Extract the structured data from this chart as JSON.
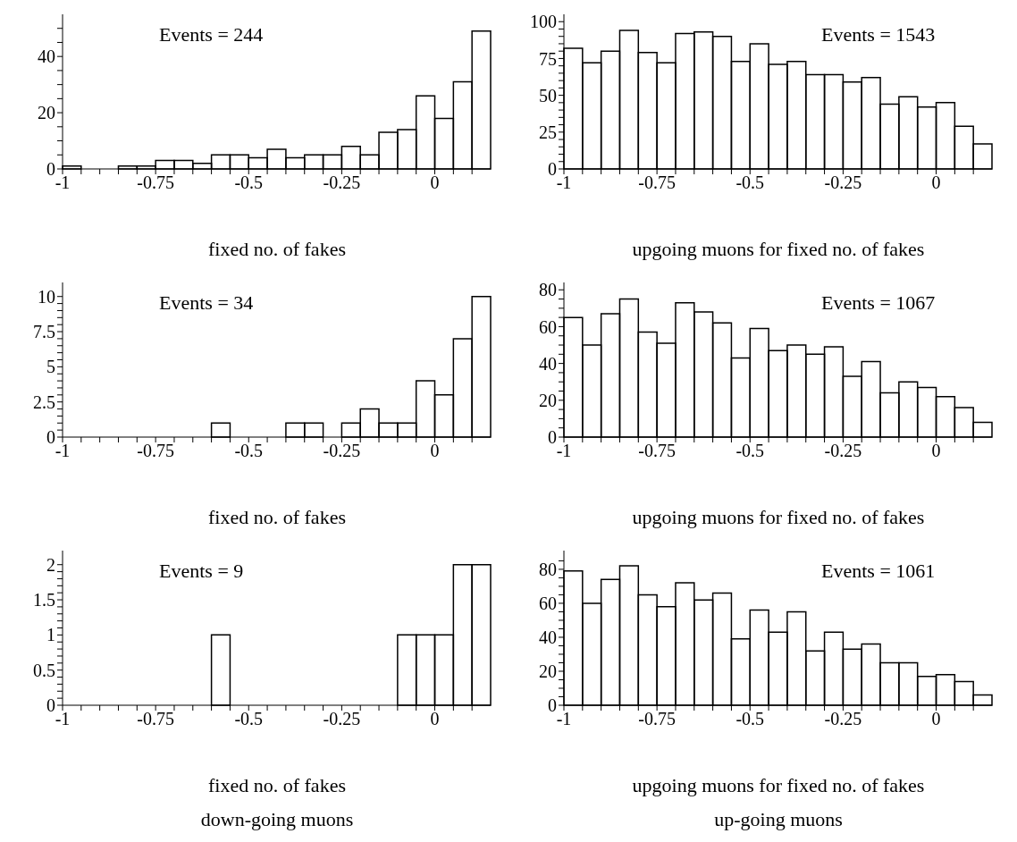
{
  "chart_data": [
    {
      "type": "histogram",
      "annotations": [
        "Events = 244"
      ],
      "xlabel": "fixed no. of fakes",
      "color": "#000000",
      "bins": [
        -1,
        -0.95,
        -0.9,
        -0.85,
        -0.8,
        -0.75,
        -0.7,
        -0.65,
        -0.6,
        -0.55,
        -0.5,
        -0.45,
        -0.4,
        -0.35,
        -0.3,
        -0.25,
        -0.2,
        -0.15,
        -0.1,
        -0.05,
        0,
        0.05,
        0.1,
        0.15
      ],
      "values": [
        1,
        0,
        0,
        1,
        1,
        3,
        3,
        2,
        5,
        5,
        4,
        7,
        4,
        5,
        5,
        8,
        5,
        13,
        14,
        26,
        18,
        31,
        49
      ],
      "xlim": [
        -1,
        0.15
      ],
      "xticks": [
        -1,
        {
          "value": -0.95,
          "label": null
        },
        {
          "value": -0.9,
          "label": null
        },
        {
          "value": -0.85,
          "label": null
        },
        {
          "value": -0.8,
          "label": null
        },
        -0.75,
        {
          "value": -0.7,
          "label": null
        },
        {
          "value": -0.65,
          "label": null
        },
        {
          "value": -0.6,
          "label": null
        },
        {
          "value": -0.55,
          "label": null
        },
        -0.5,
        {
          "value": -0.45,
          "label": null
        },
        {
          "value": -0.4,
          "label": null
        },
        {
          "value": -0.35,
          "label": null
        },
        {
          "value": -0.3,
          "label": null
        },
        -0.25,
        {
          "value": -0.2,
          "label": null
        },
        {
          "value": -0.15,
          "label": null
        },
        {
          "value": -0.1,
          "label": null
        },
        {
          "value": -0.05,
          "label": null
        },
        0,
        {
          "value": 0.05,
          "label": null
        },
        {
          "value": 0.1,
          "label": null
        }
      ],
      "ylim": [
        0,
        55
      ],
      "yticks": [
        0,
        {
          "value": 5,
          "label": null
        },
        {
          "value": 10,
          "label": null
        },
        {
          "value": 15,
          "label": null
        },
        20,
        {
          "value": 25,
          "label": null
        },
        {
          "value": 30,
          "label": null
        },
        {
          "value": 35,
          "label": null
        },
        40,
        {
          "value": 45,
          "label": null
        },
        {
          "value": 50,
          "label": null
        }
      ]
    },
    {
      "type": "histogram",
      "annotations": [
        "Events = 1543"
      ],
      "xlabel": "upgoing muons for fixed no. of fakes",
      "color": "#000000",
      "bins": [
        -1,
        -0.95,
        -0.9,
        -0.85,
        -0.8,
        -0.75,
        -0.7,
        -0.65,
        -0.6,
        -0.55,
        -0.5,
        -0.45,
        -0.4,
        -0.35,
        -0.3,
        -0.25,
        -0.2,
        -0.15,
        -0.1,
        -0.05,
        0,
        0.05,
        0.1,
        0.15
      ],
      "values": [
        82,
        72,
        80,
        94,
        79,
        72,
        92,
        93,
        90,
        73,
        85,
        71,
        73,
        64,
        64,
        59,
        62,
        44,
        49,
        42,
        45,
        29,
        17
      ],
      "xlim": [
        -1,
        0.15
      ],
      "xticks": [
        -1,
        {
          "value": -0.95,
          "label": null
        },
        {
          "value": -0.9,
          "label": null
        },
        {
          "value": -0.85,
          "label": null
        },
        {
          "value": -0.8,
          "label": null
        },
        -0.75,
        {
          "value": -0.7,
          "label": null
        },
        {
          "value": -0.65,
          "label": null
        },
        {
          "value": -0.6,
          "label": null
        },
        {
          "value": -0.55,
          "label": null
        },
        -0.5,
        {
          "value": -0.45,
          "label": null
        },
        {
          "value": -0.4,
          "label": null
        },
        {
          "value": -0.35,
          "label": null
        },
        {
          "value": -0.3,
          "label": null
        },
        -0.25,
        {
          "value": -0.2,
          "label": null
        },
        {
          "value": -0.15,
          "label": null
        },
        {
          "value": -0.1,
          "label": null
        },
        {
          "value": -0.05,
          "label": null
        },
        0,
        {
          "value": 0.05,
          "label": null
        },
        {
          "value": 0.1,
          "label": null
        }
      ],
      "ylim": [
        0,
        105
      ],
      "yticks": [
        0,
        {
          "value": 5,
          "label": null
        },
        {
          "value": 10,
          "label": null
        },
        {
          "value": 15,
          "label": null
        },
        {
          "value": 20,
          "label": null
        },
        25,
        {
          "value": 30,
          "label": null
        },
        {
          "value": 35,
          "label": null
        },
        {
          "value": 40,
          "label": null
        },
        {
          "value": 45,
          "label": null
        },
        50,
        {
          "value": 55,
          "label": null
        },
        {
          "value": 60,
          "label": null
        },
        {
          "value": 65,
          "label": null
        },
        {
          "value": 70,
          "label": null
        },
        75,
        {
          "value": 80,
          "label": null
        },
        {
          "value": 85,
          "label": null
        },
        {
          "value": 90,
          "label": null
        },
        {
          "value": 95,
          "label": null
        },
        100
      ]
    },
    {
      "type": "histogram",
      "annotations": [
        "Events = 34"
      ],
      "xlabel": "fixed no. of fakes",
      "color": "#000000",
      "bins": [
        -1,
        -0.95,
        -0.9,
        -0.85,
        -0.8,
        -0.75,
        -0.7,
        -0.65,
        -0.6,
        -0.55,
        -0.5,
        -0.45,
        -0.4,
        -0.35,
        -0.3,
        -0.25,
        -0.2,
        -0.15,
        -0.1,
        -0.05,
        0,
        0.05,
        0.1,
        0.15
      ],
      "values": [
        0,
        0,
        0,
        0,
        0,
        0,
        0,
        0,
        1,
        0,
        0,
        0,
        1,
        1,
        0,
        1,
        2,
        1,
        1,
        4,
        3,
        7,
        10
      ],
      "xlim": [
        -1,
        0.15
      ],
      "xticks": [
        -1,
        {
          "value": -0.95,
          "label": null
        },
        {
          "value": -0.9,
          "label": null
        },
        {
          "value": -0.85,
          "label": null
        },
        {
          "value": -0.8,
          "label": null
        },
        -0.75,
        {
          "value": -0.7,
          "label": null
        },
        {
          "value": -0.65,
          "label": null
        },
        {
          "value": -0.6,
          "label": null
        },
        {
          "value": -0.55,
          "label": null
        },
        -0.5,
        {
          "value": -0.45,
          "label": null
        },
        {
          "value": -0.4,
          "label": null
        },
        {
          "value": -0.35,
          "label": null
        },
        {
          "value": -0.3,
          "label": null
        },
        -0.25,
        {
          "value": -0.2,
          "label": null
        },
        {
          "value": -0.15,
          "label": null
        },
        {
          "value": -0.1,
          "label": null
        },
        {
          "value": -0.05,
          "label": null
        },
        0,
        {
          "value": 0.05,
          "label": null
        },
        {
          "value": 0.1,
          "label": null
        }
      ],
      "ylim": [
        0,
        11
      ],
      "yticks": [
        0,
        {
          "value": 0.5,
          "label": null
        },
        {
          "value": 1,
          "label": null
        },
        {
          "value": 1.5,
          "label": null
        },
        {
          "value": 2,
          "label": null
        },
        2.5,
        {
          "value": 3,
          "label": null
        },
        {
          "value": 3.5,
          "label": null
        },
        {
          "value": 4,
          "label": null
        },
        {
          "value": 4.5,
          "label": null
        },
        5,
        {
          "value": 5.5,
          "label": null
        },
        {
          "value": 6,
          "label": null
        },
        {
          "value": 6.5,
          "label": null
        },
        {
          "value": 7,
          "label": null
        },
        7.5,
        {
          "value": 8,
          "label": null
        },
        {
          "value": 8.5,
          "label": null
        },
        {
          "value": 9,
          "label": null
        },
        {
          "value": 9.5,
          "label": null
        },
        10
      ]
    },
    {
      "type": "histogram",
      "annotations": [
        "Events = 1067"
      ],
      "xlabel": "upgoing muons for fixed no. of fakes",
      "color": "#000000",
      "bins": [
        -1,
        -0.95,
        -0.9,
        -0.85,
        -0.8,
        -0.75,
        -0.7,
        -0.65,
        -0.6,
        -0.55,
        -0.5,
        -0.45,
        -0.4,
        -0.35,
        -0.3,
        -0.25,
        -0.2,
        -0.15,
        -0.1,
        -0.05,
        0,
        0.05,
        0.1,
        0.15
      ],
      "values": [
        65,
        50,
        67,
        75,
        57,
        51,
        73,
        68,
        62,
        43,
        59,
        47,
        50,
        45,
        49,
        33,
        41,
        24,
        30,
        27,
        22,
        16,
        8
      ],
      "xlim": [
        -1,
        0.15
      ],
      "xticks": [
        -1,
        {
          "value": -0.95,
          "label": null
        },
        {
          "value": -0.9,
          "label": null
        },
        {
          "value": -0.85,
          "label": null
        },
        {
          "value": -0.8,
          "label": null
        },
        -0.75,
        {
          "value": -0.7,
          "label": null
        },
        {
          "value": -0.65,
          "label": null
        },
        {
          "value": -0.6,
          "label": null
        },
        {
          "value": -0.55,
          "label": null
        },
        -0.5,
        {
          "value": -0.45,
          "label": null
        },
        {
          "value": -0.4,
          "label": null
        },
        {
          "value": -0.35,
          "label": null
        },
        {
          "value": -0.3,
          "label": null
        },
        -0.25,
        {
          "value": -0.2,
          "label": null
        },
        {
          "value": -0.15,
          "label": null
        },
        {
          "value": -0.1,
          "label": null
        },
        {
          "value": -0.05,
          "label": null
        },
        0,
        {
          "value": 0.05,
          "label": null
        },
        {
          "value": 0.1,
          "label": null
        }
      ],
      "ylim": [
        0,
        84
      ],
      "yticks": [
        0,
        {
          "value": 5,
          "label": null
        },
        {
          "value": 10,
          "label": null
        },
        {
          "value": 15,
          "label": null
        },
        20,
        {
          "value": 25,
          "label": null
        },
        {
          "value": 30,
          "label": null
        },
        {
          "value": 35,
          "label": null
        },
        40,
        {
          "value": 45,
          "label": null
        },
        {
          "value": 50,
          "label": null
        },
        {
          "value": 55,
          "label": null
        },
        60,
        {
          "value": 65,
          "label": null
        },
        {
          "value": 70,
          "label": null
        },
        {
          "value": 75,
          "label": null
        },
        80
      ]
    },
    {
      "type": "histogram",
      "annotations": [
        "Events = 9",
        "down-going muons"
      ],
      "xlabel": "fixed no. of fakes",
      "color": "#000000",
      "bins": [
        -1,
        -0.95,
        -0.9,
        -0.85,
        -0.8,
        -0.75,
        -0.7,
        -0.65,
        -0.6,
        -0.55,
        -0.5,
        -0.45,
        -0.4,
        -0.35,
        -0.3,
        -0.25,
        -0.2,
        -0.15,
        -0.1,
        -0.05,
        0,
        0.05,
        0.1,
        0.15
      ],
      "values": [
        0,
        0,
        0,
        0,
        0,
        0,
        0,
        0,
        1,
        0,
        0,
        0,
        0,
        0,
        0,
        0,
        0,
        0,
        1,
        1,
        1,
        2,
        2
      ],
      "xlim": [
        -1,
        0.15
      ],
      "xticks": [
        -1,
        {
          "value": -0.95,
          "label": null
        },
        {
          "value": -0.9,
          "label": null
        },
        {
          "value": -0.85,
          "label": null
        },
        {
          "value": -0.8,
          "label": null
        },
        -0.75,
        {
          "value": -0.7,
          "label": null
        },
        {
          "value": -0.65,
          "label": null
        },
        {
          "value": -0.6,
          "label": null
        },
        {
          "value": -0.55,
          "label": null
        },
        -0.5,
        {
          "value": -0.45,
          "label": null
        },
        {
          "value": -0.4,
          "label": null
        },
        {
          "value": -0.35,
          "label": null
        },
        {
          "value": -0.3,
          "label": null
        },
        -0.25,
        {
          "value": -0.2,
          "label": null
        },
        {
          "value": -0.15,
          "label": null
        },
        {
          "value": -0.1,
          "label": null
        },
        {
          "value": -0.05,
          "label": null
        },
        0,
        {
          "value": 0.05,
          "label": null
        },
        {
          "value": 0.1,
          "label": null
        }
      ],
      "ylim": [
        0,
        2.2
      ],
      "yticks": [
        0,
        {
          "value": 0.1,
          "label": null
        },
        {
          "value": 0.2,
          "label": null
        },
        {
          "value": 0.3,
          "label": null
        },
        {
          "value": 0.4,
          "label": null
        },
        0.5,
        {
          "value": 0.6,
          "label": null
        },
        {
          "value": 0.7,
          "label": null
        },
        {
          "value": 0.8,
          "label": null
        },
        {
          "value": 0.9,
          "label": null
        },
        1,
        {
          "value": 1.1,
          "label": null
        },
        {
          "value": 1.2,
          "label": null
        },
        {
          "value": 1.3,
          "label": null
        },
        {
          "value": 1.4,
          "label": null
        },
        1.5,
        {
          "value": 1.6,
          "label": null
        },
        {
          "value": 1.7,
          "label": null
        },
        {
          "value": 1.8,
          "label": null
        },
        {
          "value": 1.9,
          "label": null
        },
        2
      ]
    },
    {
      "type": "histogram",
      "annotations": [
        "Events = 1061",
        "up-going muons"
      ],
      "xlabel": "upgoing muons for fixed no. of fakes",
      "color": "#000000",
      "bins": [
        -1,
        -0.95,
        -0.9,
        -0.85,
        -0.8,
        -0.75,
        -0.7,
        -0.65,
        -0.6,
        -0.55,
        -0.5,
        -0.45,
        -0.4,
        -0.35,
        -0.3,
        -0.25,
        -0.2,
        -0.15,
        -0.1,
        -0.05,
        0,
        0.05,
        0.1,
        0.15
      ],
      "values": [
        79,
        60,
        74,
        82,
        65,
        58,
        72,
        62,
        66,
        39,
        56,
        43,
        55,
        32,
        43,
        33,
        36,
        25,
        25,
        17,
        18,
        14,
        6
      ],
      "xlim": [
        -1,
        0.15
      ],
      "xticks": [
        -1,
        {
          "value": -0.95,
          "label": null
        },
        {
          "value": -0.9,
          "label": null
        },
        {
          "value": -0.85,
          "label": null
        },
        {
          "value": -0.8,
          "label": null
        },
        -0.75,
        {
          "value": -0.7,
          "label": null
        },
        {
          "value": -0.65,
          "label": null
        },
        {
          "value": -0.6,
          "label": null
        },
        {
          "value": -0.55,
          "label": null
        },
        -0.5,
        {
          "value": -0.45,
          "label": null
        },
        {
          "value": -0.4,
          "label": null
        },
        {
          "value": -0.35,
          "label": null
        },
        {
          "value": -0.3,
          "label": null
        },
        -0.25,
        {
          "value": -0.2,
          "label": null
        },
        {
          "value": -0.15,
          "label": null
        },
        {
          "value": -0.1,
          "label": null
        },
        {
          "value": -0.05,
          "label": null
        },
        0,
        {
          "value": 0.05,
          "label": null
        },
        {
          "value": 0.1,
          "label": null
        }
      ],
      "ylim": [
        0,
        91
      ],
      "yticks": [
        0,
        {
          "value": 5,
          "label": null
        },
        {
          "value": 10,
          "label": null
        },
        {
          "value": 15,
          "label": null
        },
        20,
        {
          "value": 25,
          "label": null
        },
        {
          "value": 30,
          "label": null
        },
        {
          "value": 35,
          "label": null
        },
        40,
        {
          "value": 45,
          "label": null
        },
        {
          "value": 50,
          "label": null
        },
        {
          "value": 55,
          "label": null
        },
        60,
        {
          "value": 65,
          "label": null
        },
        {
          "value": 70,
          "label": null
        },
        {
          "value": 75,
          "label": null
        },
        80,
        {
          "value": 85,
          "label": null
        }
      ]
    }
  ]
}
